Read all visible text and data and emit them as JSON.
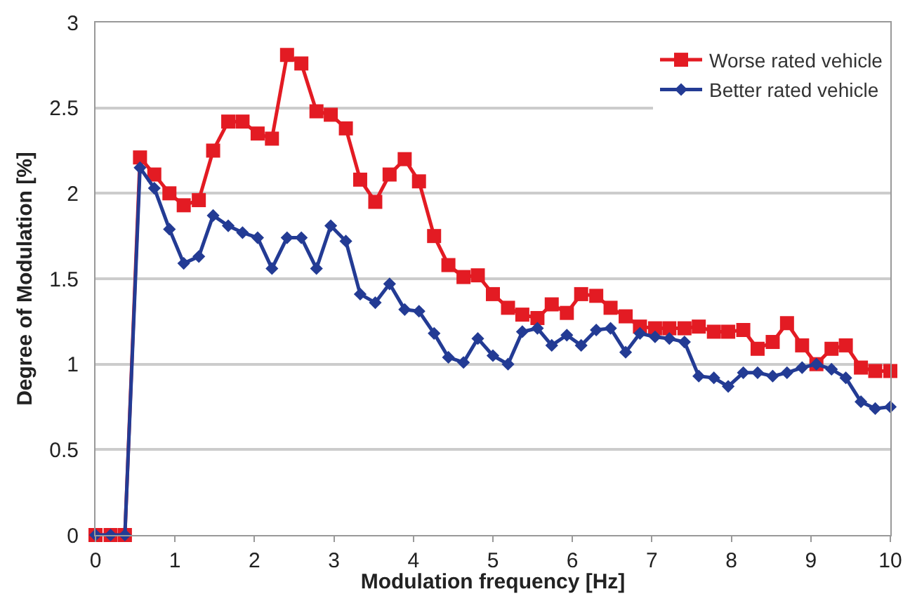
{
  "chart_data": {
    "type": "line",
    "xlabel": "Modulation frequency [Hz]",
    "ylabel": "Degree of Modulation [%]",
    "x": [
      0,
      0.19,
      0.37,
      0.56,
      0.74,
      0.93,
      1.11,
      1.3,
      1.48,
      1.67,
      1.85,
      2.04,
      2.22,
      2.41,
      2.59,
      2.78,
      2.96,
      3.15,
      3.33,
      3.52,
      3.7,
      3.89,
      4.07,
      4.26,
      4.44,
      4.63,
      4.81,
      5.0,
      5.19,
      5.37,
      5.56,
      5.74,
      5.93,
      6.11,
      6.3,
      6.48,
      6.67,
      6.85,
      7.04,
      7.22,
      7.41,
      7.59,
      7.78,
      7.96,
      8.15,
      8.33,
      8.52,
      8.7,
      8.89,
      9.07,
      9.26,
      9.44,
      9.63,
      9.81,
      10.0
    ],
    "series": [
      {
        "name": "Worse rated vehicle",
        "color": "#e31b23",
        "marker": "square",
        "values": [
          0,
          0,
          0,
          2.21,
          2.11,
          2.0,
          1.93,
          1.96,
          2.25,
          2.42,
          2.42,
          2.35,
          2.32,
          2.81,
          2.76,
          2.48,
          2.46,
          2.38,
          2.08,
          1.95,
          2.11,
          2.2,
          2.07,
          1.75,
          1.58,
          1.51,
          1.52,
          1.41,
          1.33,
          1.29,
          1.27,
          1.35,
          1.3,
          1.41,
          1.4,
          1.33,
          1.28,
          1.22,
          1.21,
          1.21,
          1.21,
          1.22,
          1.19,
          1.19,
          1.2,
          1.09,
          1.13,
          1.24,
          1.11,
          1.0,
          1.09,
          1.11,
          0.98,
          0.96,
          0.96
        ]
      },
      {
        "name": "Better rated vehicle",
        "color": "#233b94",
        "marker": "diamond",
        "values": [
          0,
          0,
          0,
          2.15,
          2.03,
          1.79,
          1.59,
          1.63,
          1.87,
          1.81,
          1.77,
          1.74,
          1.56,
          1.74,
          1.74,
          1.56,
          1.81,
          1.72,
          1.41,
          1.36,
          1.47,
          1.32,
          1.31,
          1.18,
          1.04,
          1.01,
          1.15,
          1.05,
          1.0,
          1.19,
          1.21,
          1.11,
          1.17,
          1.11,
          1.2,
          1.21,
          1.07,
          1.18,
          1.16,
          1.15,
          1.13,
          0.93,
          0.92,
          0.87,
          0.95,
          0.95,
          0.93,
          0.95,
          0.98,
          1.0,
          0.97,
          0.92,
          0.78,
          0.74,
          0.75
        ]
      }
    ],
    "xlim": [
      0,
      10
    ],
    "xticks": [
      0,
      1,
      2,
      3,
      4,
      5,
      6,
      7,
      8,
      9,
      10
    ],
    "ylim": [
      0,
      3
    ],
    "yticks": [
      0,
      0.5,
      1,
      1.5,
      2,
      2.5,
      3
    ],
    "grid": "y",
    "legend": "top right",
    "line_style": "solid"
  }
}
